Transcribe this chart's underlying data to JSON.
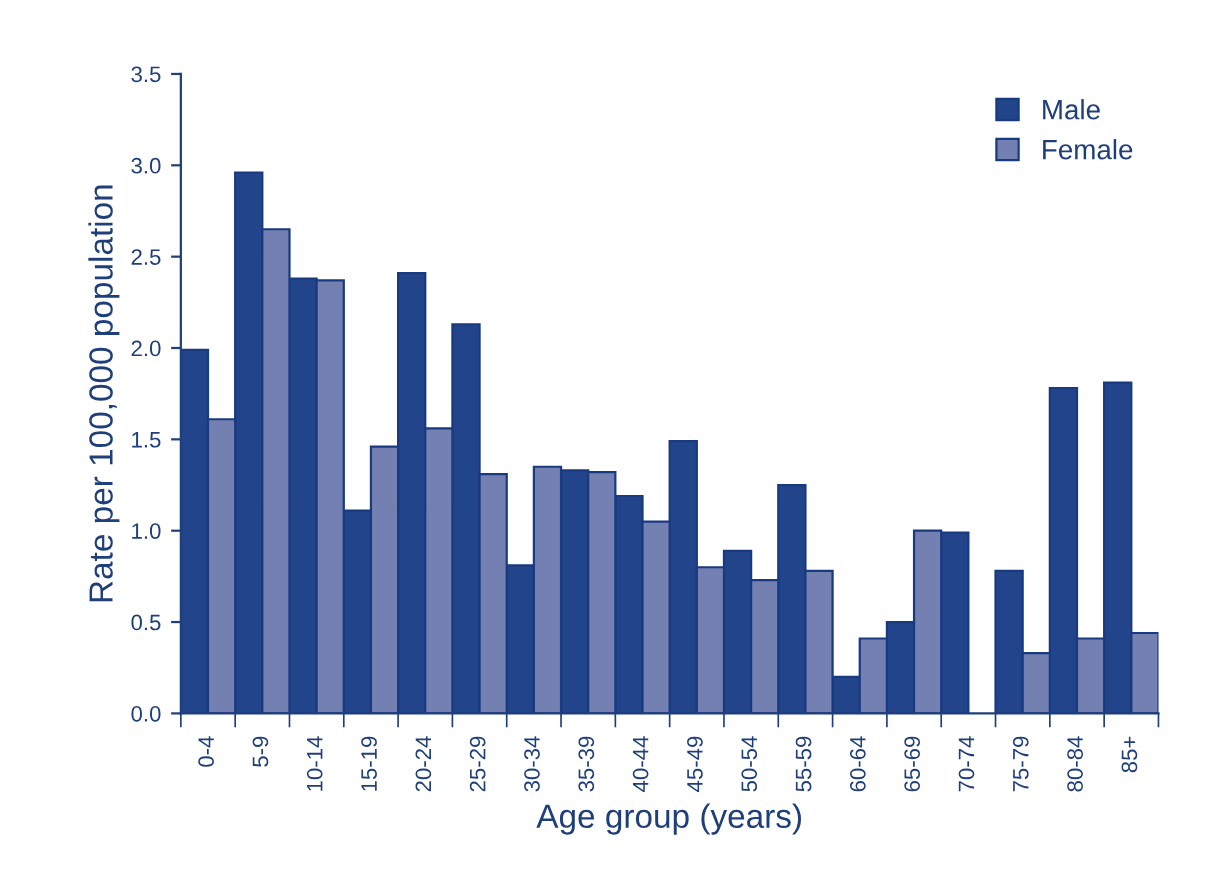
{
  "chart_data": {
    "type": "bar",
    "xlabel": "Age group (years)",
    "ylabel": "Rate per 100,000 population",
    "categories": [
      "0-4",
      "5-9",
      "10-14",
      "15-19",
      "20-24",
      "25-29",
      "30-34",
      "35-39",
      "40-44",
      "45-49",
      "50-54",
      "55-59",
      "60-64",
      "65-69",
      "70-74",
      "75-79",
      "80-84",
      "85+"
    ],
    "series": [
      {
        "name": "Male",
        "color": "#22448a",
        "values": [
          1.99,
          2.96,
          2.38,
          1.11,
          2.41,
          2.13,
          0.81,
          1.33,
          1.19,
          1.49,
          0.89,
          1.25,
          0.2,
          0.5,
          0.99,
          0.78,
          1.78,
          1.81
        ]
      },
      {
        "name": "Female",
        "color": "#7480b2",
        "values": [
          1.61,
          2.65,
          2.37,
          1.46,
          1.56,
          1.31,
          1.35,
          1.32,
          1.05,
          0.8,
          0.73,
          0.78,
          0.41,
          1.0,
          null,
          0.33,
          0.41,
          0.44
        ]
      }
    ],
    "ylim": [
      0,
      3.5
    ],
    "yticks": [
      {
        "value": 0,
        "label": "0.0"
      },
      {
        "value": 0.5,
        "label": "0.5"
      },
      {
        "value": 1,
        "label": "1.0"
      },
      {
        "value": 1.5,
        "label": "1.5"
      },
      {
        "value": 2,
        "label": "2.0"
      },
      {
        "value": 2.5,
        "label": "2.5"
      },
      {
        "value": 3,
        "label": "3.0"
      },
      {
        "value": 3.5,
        "label": "3.5"
      }
    ],
    "grid": false,
    "legend": "top right"
  }
}
